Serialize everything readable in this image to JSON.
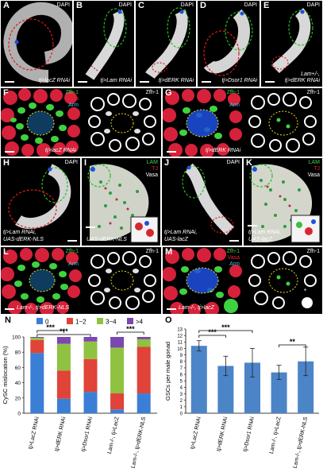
{
  "panels": {
    "A": {
      "letter": "A",
      "stain": "DAPI",
      "genotype": "tj>lacZ RNAi"
    },
    "B": {
      "letter": "B",
      "stain": "DAPI",
      "genotype": "tj>Lam RNAi"
    },
    "C": {
      "letter": "C",
      "stain": "DAPI",
      "genotype": "tj>dERK RNAi"
    },
    "D": {
      "letter": "D",
      "stain": "DAPI",
      "genotype": "tj>Dsor1 RNAi"
    },
    "E": {
      "letter": "E",
      "stain": "DAPI",
      "genotype_line1": "Lam+/-,",
      "genotype_line2": "tj>dERK RNAi"
    },
    "F": {
      "letter": "F",
      "m1": "Zfh-1",
      "m2": "Vasa",
      "m3": "Arm",
      "right_label": "Zfh-1",
      "genotype": "tj>lacZ RNAi"
    },
    "G": {
      "letter": "G",
      "m1": "Zfh-1",
      "m2": "Vasa",
      "m3": "Arm",
      "right_label": "Zfh-1",
      "genotype": "tj>dERK RNAi"
    },
    "H": {
      "letter": "H",
      "stain": "DAPI",
      "genotype_line1": "tj>Lam RNAi,",
      "genotype_line2": "UAS-dERK-NLS"
    },
    "I": {
      "letter": "I",
      "m1": "LAM",
      "m2": "TJ",
      "m3": "Vasa",
      "genotype": "UAS-dERK-NLS"
    },
    "J": {
      "letter": "J",
      "stain": "DAPI",
      "genotype_line1": "tj>Lam RNAi,",
      "genotype_line2": "UAS-lacZ"
    },
    "K": {
      "letter": "K",
      "m1": "LAM",
      "m2": "TJ",
      "m3": "Vasa",
      "genotype_line1": "tj>Lam RNAi,",
      "genotype_line2": "UAS-lacZ"
    },
    "L": {
      "letter": "L",
      "m1": "Zfh-1",
      "m2": "Vasa",
      "m3": "Arm",
      "right_label": "Zfh-1",
      "genotype": "Lam-/-, tj>dERK-NLS"
    },
    "M": {
      "letter": "M",
      "m1": "Zfh-1",
      "m2": "Vasa",
      "m3": "Arm",
      "right_label": "Zfh-1",
      "genotype": "Lam-/-, tj>lacZ"
    }
  },
  "colors": {
    "zfh": "#3fd23f",
    "vasa": "#e8223a",
    "arm": "#33c6e6",
    "dapi": "#e6e6e6",
    "dashed_red": "#e01b1b",
    "dashed_green": "#22c022",
    "dashed_yellow": "#f0e020",
    "blue": "#1e4fe0"
  },
  "chart_data": [
    {
      "letter": "N",
      "type": "bar",
      "stacked": true,
      "ylabel": "CySC mislocation (%)",
      "yticks": [
        "0",
        "20",
        "40",
        "60",
        "80",
        "100"
      ],
      "ylim": [
        0,
        100
      ],
      "legend": [
        "0",
        "1~2",
        "3~4",
        ">4"
      ],
      "legend_colors": [
        "#3b7ed6",
        "#e04338",
        "#8fc241",
        "#7a48b0"
      ],
      "categories": [
        "tj>LacZ RNAi",
        "tj>dERK RNAi",
        "tj>Dsor1 RNAi",
        "Lam-/-, tj>LacZ",
        "Lam-/-, tj>dERK-NLS"
      ],
      "series": [
        {
          "name": "0",
          "values": [
            79,
            19,
            28,
            5,
            26
          ]
        },
        {
          "name": "1~2",
          "values": [
            17,
            37,
            43,
            21,
            61
          ]
        },
        {
          "name": "3~4",
          "values": [
            3,
            35,
            23,
            60,
            10
          ]
        },
        {
          "name": ">4",
          "values": [
            1,
            9,
            6,
            14,
            3
          ]
        }
      ],
      "sig": [
        "***",
        "***",
        "***"
      ]
    },
    {
      "letter": "O",
      "type": "bar",
      "ylabel": "GSCs per male gonad",
      "yticks": [
        "0",
        "1",
        "2",
        "3",
        "4",
        "5",
        "6",
        "7",
        "8",
        "9",
        "10",
        "11",
        "12",
        "13"
      ],
      "ylim": [
        0,
        13
      ],
      "categories": [
        "tj>LacZ RNAi",
        "tj>dERK RNAi",
        "tj>Dsor1 RNAi",
        "Lam-/-, tj>LacZ",
        "Lam-/-, tj>dERK-NLS"
      ],
      "values": [
        10.4,
        7.3,
        7.8,
        6.3,
        8.0
      ],
      "errors": [
        0.8,
        1.5,
        2.2,
        1.1,
        2.2
      ],
      "color": "#4c84c8",
      "sig": [
        "***",
        "***",
        "**"
      ]
    }
  ]
}
